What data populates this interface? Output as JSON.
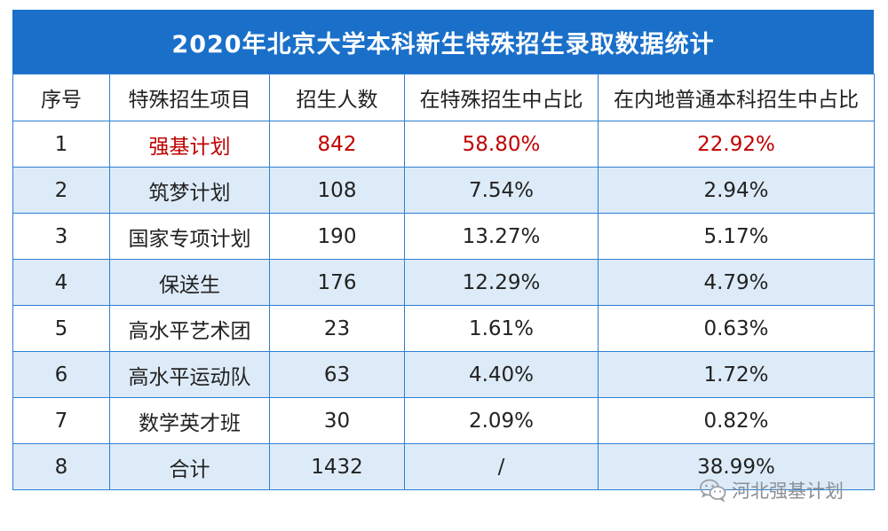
{
  "table": {
    "title": "2020年北京大学本科新生特殊招生录取数据统计",
    "headers": [
      "序号",
      "特殊招生项目",
      "招生人数",
      "在特殊招生中占比",
      "在内地普通本科招生中占比"
    ],
    "rows": [
      {
        "seq": "1",
        "project": "强基计划",
        "count": "842",
        "special_share": "58.80%",
        "general_share": "22.92%",
        "highlight": true
      },
      {
        "seq": "2",
        "project": "筑梦计划",
        "count": "108",
        "special_share": "7.54%",
        "general_share": "2.94%"
      },
      {
        "seq": "3",
        "project": "国家专项计划",
        "count": "190",
        "special_share": "13.27%",
        "general_share": "5.17%"
      },
      {
        "seq": "4",
        "project": "保送生",
        "count": "176",
        "special_share": "12.29%",
        "general_share": "4.79%"
      },
      {
        "seq": "5",
        "project": "高水平艺术团",
        "count": "23",
        "special_share": "1.61%",
        "general_share": "0.63%"
      },
      {
        "seq": "6",
        "project": "高水平运动队",
        "count": "63",
        "special_share": "4.40%",
        "general_share": "1.72%"
      },
      {
        "seq": "7",
        "project": "数学英才班",
        "count": "30",
        "special_share": "2.09%",
        "general_share": "0.82%"
      },
      {
        "seq": "8",
        "project": "合计",
        "count": "1432",
        "special_share": "/",
        "general_share": "38.99%"
      }
    ]
  },
  "watermark": {
    "text": "河北强基计划",
    "icon": "wechat-icon"
  },
  "colors": {
    "header_bg": "#1a6fc9",
    "stripe_bg": "#ddebf8",
    "border": "#2f7fd1",
    "highlight_text": "#c00000"
  }
}
